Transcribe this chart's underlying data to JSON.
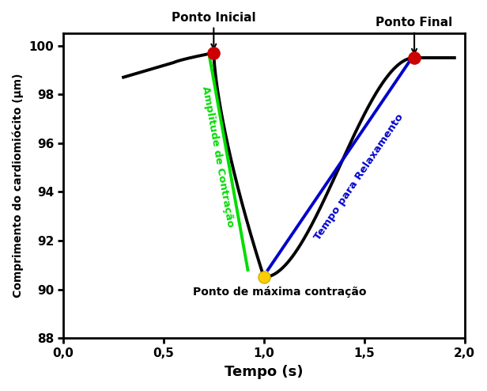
{
  "title": "",
  "xlabel": "Tempo (s)",
  "ylabel": "Comprimento do cardiomiócito (μm)",
  "xlim": [
    0.0,
    2.0
  ],
  "ylim": [
    88,
    100.5
  ],
  "xticks": [
    0.0,
    0.5,
    1.0,
    1.5,
    2.0
  ],
  "yticks": [
    88,
    90,
    92,
    94,
    96,
    98,
    100
  ],
  "xtick_labels": [
    "0,0",
    "0,5",
    "1,0",
    "1,5",
    "2,0"
  ],
  "ytick_labels": [
    "88",
    "90",
    "92",
    "94",
    "96",
    "98",
    "100"
  ],
  "ponto_inicial": [
    0.75,
    99.7
  ],
  "ponto_final": [
    1.75,
    99.5
  ],
  "ponto_max_contracao": [
    1.0,
    90.5
  ],
  "green_line_x": [
    0.73,
    0.92
  ],
  "green_line_y": [
    99.5,
    90.8
  ],
  "blue_line_x": [
    1.02,
    1.73
  ],
  "blue_line_y": [
    90.8,
    99.4
  ],
  "label_ponto_inicial": "Ponto Inicial",
  "label_ponto_final": "Ponto Final",
  "label_max": "Ponto de máxima contração",
  "label_amplitude": "Amplitude de Contração",
  "label_relaxamento": "Tempo para Relaxamento",
  "curve_color": "#000000",
  "dot_red_color": "#cc0000",
  "dot_yellow_color": "#ffcc00",
  "green_color": "#00dd00",
  "blue_color": "#0000cc",
  "figsize": [
    6.16,
    4.94
  ],
  "dpi": 100
}
